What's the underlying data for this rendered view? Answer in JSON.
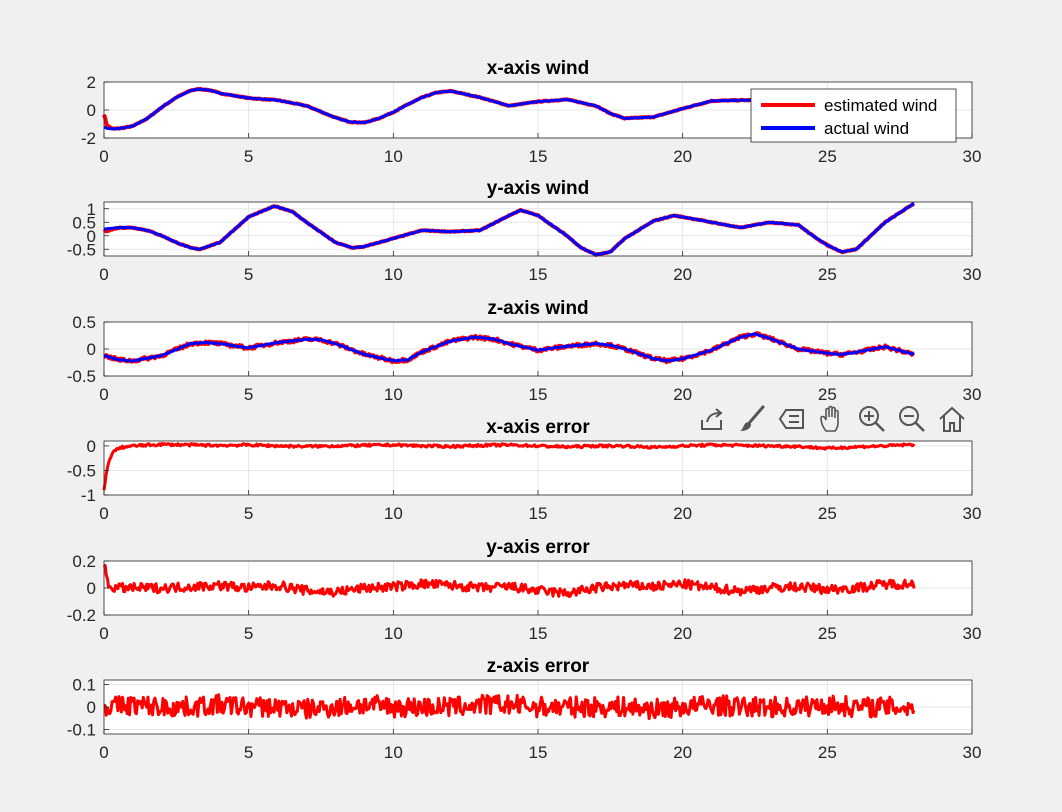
{
  "figure": {
    "background": "#f0f0f0",
    "axes_background": "#ffffff",
    "grid_color": "#e6e6e6",
    "axis_color": "#262626"
  },
  "colors": {
    "estimated": "#ff0000",
    "actual": "#0000ff"
  },
  "toolbar": {
    "buttons": [
      {
        "name": "export-icon"
      },
      {
        "name": "brush-icon"
      },
      {
        "name": "data-tips-icon"
      },
      {
        "name": "pan-icon"
      },
      {
        "name": "zoom-in-icon"
      },
      {
        "name": "zoom-out-icon"
      },
      {
        "name": "home-icon"
      }
    ]
  },
  "chart_data": [
    {
      "type": "line",
      "title": "x-axis wind",
      "xlim": [
        0,
        30
      ],
      "ylim": [
        -2,
        2
      ],
      "xticks": [
        0,
        5,
        10,
        15,
        20,
        25,
        30
      ],
      "yticks": [
        -2,
        0,
        2
      ],
      "grid": true,
      "legend": {
        "position": "top-right",
        "entries": [
          "estimated wind",
          "actual wind"
        ]
      },
      "series": [
        {
          "name": "estimated wind",
          "color": "#ff0000",
          "x": [
            0,
            0.1,
            0.3,
            0.6,
            1,
            1.5,
            2,
            2.5,
            3,
            3.3,
            3.7,
            4,
            5,
            6,
            7,
            8,
            8.5,
            9,
            9.5,
            10,
            10.5,
            11,
            11.5,
            12,
            13,
            14,
            15,
            16,
            17,
            17.5,
            18,
            19,
            20,
            21,
            22,
            23,
            24,
            25,
            26,
            27,
            28
          ],
          "y": [
            -0.3,
            -1.1,
            -1.35,
            -1.3,
            -1.15,
            -0.6,
            0.2,
            0.9,
            1.4,
            1.5,
            1.4,
            1.2,
            0.85,
            0.7,
            0.3,
            -0.55,
            -0.85,
            -0.9,
            -0.6,
            -0.15,
            0.4,
            0.9,
            1.25,
            1.35,
            0.9,
            0.3,
            0.6,
            0.75,
            0.3,
            -0.25,
            -0.6,
            -0.5,
            0.1,
            0.65,
            0.7,
            0.7,
            0.75,
            0.85,
            0.8,
            0.9,
            1.0
          ]
        },
        {
          "name": "actual wind",
          "color": "#0000ff",
          "x": [
            0,
            0.1,
            0.3,
            0.6,
            1,
            1.5,
            2,
            2.5,
            3,
            3.3,
            3.7,
            4,
            5,
            6,
            7,
            8,
            8.5,
            9,
            9.5,
            10,
            10.5,
            11,
            11.5,
            12,
            13,
            14,
            15,
            16,
            17,
            17.5,
            18,
            19,
            20,
            21,
            22,
            23,
            24,
            25,
            26,
            27,
            28
          ],
          "y": [
            -1.2,
            -1.3,
            -1.35,
            -1.3,
            -1.15,
            -0.6,
            0.2,
            0.9,
            1.4,
            1.5,
            1.4,
            1.2,
            0.85,
            0.7,
            0.3,
            -0.55,
            -0.85,
            -0.9,
            -0.6,
            -0.15,
            0.4,
            0.9,
            1.25,
            1.35,
            0.9,
            0.3,
            0.6,
            0.75,
            0.3,
            -0.25,
            -0.6,
            -0.5,
            0.1,
            0.65,
            0.7,
            0.7,
            0.75,
            0.85,
            0.8,
            0.9,
            1.0
          ]
        }
      ]
    },
    {
      "type": "line",
      "title": "y-axis wind",
      "xlim": [
        0,
        30
      ],
      "ylim": [
        -0.75,
        1.25
      ],
      "xticks": [
        0,
        5,
        10,
        15,
        20,
        25,
        30
      ],
      "yticks": [
        -0.5,
        0,
        0.5,
        1
      ],
      "grid": true,
      "series": [
        {
          "name": "estimated wind",
          "color": "#ff0000",
          "x": [
            0,
            0.5,
            1,
            1.5,
            2,
            2.5,
            3,
            3.3,
            4,
            5,
            5.9,
            6.5,
            7,
            8,
            8.6,
            9,
            10,
            11,
            12,
            13,
            14,
            14.4,
            15,
            16,
            16.5,
            17,
            17.5,
            18,
            19,
            19.7,
            20.5,
            21,
            22,
            23,
            24,
            24.5,
            25,
            25.5,
            26,
            26.5,
            27,
            28
          ],
          "y": [
            0.15,
            0.3,
            0.3,
            0.2,
            0.0,
            -0.25,
            -0.45,
            -0.5,
            -0.25,
            0.7,
            1.1,
            0.9,
            0.5,
            -0.25,
            -0.45,
            -0.4,
            -0.1,
            0.2,
            0.15,
            0.2,
            0.75,
            0.95,
            0.75,
            0.0,
            -0.45,
            -0.7,
            -0.6,
            -0.1,
            0.55,
            0.75,
            0.6,
            0.5,
            0.3,
            0.5,
            0.4,
            0.0,
            -0.35,
            -0.6,
            -0.5,
            0.0,
            0.5,
            1.2
          ]
        },
        {
          "name": "actual wind",
          "color": "#0000ff",
          "x": [
            0,
            0.5,
            1,
            1.5,
            2,
            2.5,
            3,
            3.3,
            4,
            5,
            5.9,
            6.5,
            7,
            8,
            8.6,
            9,
            10,
            11,
            12,
            13,
            14,
            14.4,
            15,
            16,
            16.5,
            17,
            17.5,
            18,
            19,
            19.7,
            20.5,
            21,
            22,
            23,
            24,
            24.5,
            25,
            25.5,
            26,
            26.5,
            27,
            28
          ],
          "y": [
            0.25,
            0.3,
            0.3,
            0.2,
            0.0,
            -0.25,
            -0.45,
            -0.5,
            -0.25,
            0.7,
            1.1,
            0.9,
            0.5,
            -0.25,
            -0.45,
            -0.4,
            -0.1,
            0.2,
            0.15,
            0.2,
            0.75,
            0.95,
            0.75,
            0.0,
            -0.45,
            -0.7,
            -0.6,
            -0.1,
            0.55,
            0.75,
            0.6,
            0.5,
            0.3,
            0.5,
            0.4,
            0.0,
            -0.35,
            -0.6,
            -0.5,
            0.0,
            0.5,
            1.2
          ]
        }
      ]
    },
    {
      "type": "line",
      "title": "z-axis wind",
      "xlim": [
        0,
        30
      ],
      "ylim": [
        -0.5,
        0.5
      ],
      "xticks": [
        0,
        5,
        10,
        15,
        20,
        25,
        30
      ],
      "yticks": [
        -0.5,
        0,
        0.5
      ],
      "grid": true,
      "series": [
        {
          "name": "estimated wind",
          "color": "#ff0000",
          "x": [
            0,
            0.5,
            1,
            2,
            3,
            3.5,
            4,
            5,
            6,
            7,
            7.5,
            8,
            9,
            10,
            10.5,
            11,
            12,
            12.8,
            13.5,
            14,
            15,
            16,
            17,
            17.5,
            18,
            19,
            19.5,
            20,
            21,
            22,
            22.5,
            23,
            24,
            25,
            25.5,
            26,
            27,
            28
          ],
          "y": [
            -0.12,
            -0.2,
            -0.22,
            -0.12,
            0.1,
            0.12,
            0.1,
            0.02,
            0.12,
            0.18,
            0.17,
            0.1,
            -0.1,
            -0.22,
            -0.2,
            -0.05,
            0.15,
            0.22,
            0.18,
            0.1,
            -0.02,
            0.05,
            0.1,
            0.07,
            0.0,
            -0.18,
            -0.22,
            -0.18,
            -0.02,
            0.22,
            0.28,
            0.2,
            0.0,
            -0.08,
            -0.1,
            -0.06,
            0.04,
            -0.1
          ]
        },
        {
          "name": "actual wind",
          "color": "#0000ff",
          "x": [
            0,
            0.5,
            1,
            2,
            3,
            3.5,
            4,
            5,
            6,
            7,
            7.5,
            8,
            9,
            10,
            10.5,
            11,
            12,
            12.8,
            13.5,
            14,
            15,
            16,
            17,
            17.5,
            18,
            19,
            19.5,
            20,
            21,
            22,
            22.5,
            23,
            24,
            25,
            25.5,
            26,
            27,
            28
          ],
          "y": [
            -0.12,
            -0.2,
            -0.22,
            -0.12,
            0.1,
            0.12,
            0.1,
            0.02,
            0.12,
            0.18,
            0.17,
            0.1,
            -0.1,
            -0.22,
            -0.2,
            -0.05,
            0.15,
            0.22,
            0.18,
            0.1,
            -0.02,
            0.05,
            0.1,
            0.07,
            0.0,
            -0.18,
            -0.22,
            -0.18,
            -0.02,
            0.22,
            0.28,
            0.2,
            0.0,
            -0.08,
            -0.1,
            -0.06,
            0.04,
            -0.1
          ]
        }
      ]
    },
    {
      "type": "line",
      "title": "x-axis error",
      "xlim": [
        0,
        30
      ],
      "ylim": [
        -1,
        0.1
      ],
      "xticks": [
        0,
        5,
        10,
        15,
        20,
        25,
        30
      ],
      "yticks": [
        -1,
        -0.5,
        0
      ],
      "grid": true,
      "series": [
        {
          "name": "x-axis error",
          "color": "#ff0000",
          "x": [
            0,
            0.05,
            0.1,
            0.2,
            0.35,
            0.6,
            1,
            2,
            3,
            4,
            5,
            6,
            7,
            8,
            9,
            10,
            11,
            12,
            13,
            14,
            15,
            16,
            17,
            18,
            19,
            20,
            21,
            22,
            23,
            24,
            25,
            26,
            27,
            28
          ],
          "y": [
            -0.9,
            -0.7,
            -0.5,
            -0.25,
            -0.1,
            -0.03,
            0.0,
            0.03,
            0.02,
            0.01,
            0.02,
            0.0,
            -0.01,
            0.0,
            0.01,
            0.02,
            0.0,
            -0.01,
            0.01,
            0.02,
            0.0,
            -0.02,
            0.0,
            0.0,
            -0.03,
            0.0,
            0.02,
            0.01,
            0.0,
            -0.01,
            -0.05,
            -0.02,
            0.0,
            0.03
          ]
        }
      ]
    },
    {
      "type": "line",
      "title": "y-axis error",
      "xlim": [
        0,
        30
      ],
      "ylim": [
        -0.2,
        0.2
      ],
      "xticks": [
        0,
        5,
        10,
        15,
        20,
        25,
        30
      ],
      "yticks": [
        -0.2,
        0,
        0.2
      ],
      "grid": true,
      "series": [
        {
          "name": "y-axis error",
          "color": "#ff0000",
          "x": [
            0,
            0.05,
            0.1,
            0.2,
            0.5,
            1,
            2,
            3,
            4,
            5,
            6,
            7,
            8,
            9,
            10,
            11,
            12,
            13,
            14,
            15,
            16,
            17,
            18,
            19,
            20,
            21,
            22,
            23,
            24,
            25,
            26,
            27,
            28
          ],
          "y": [
            0.18,
            0.12,
            0.05,
            0.01,
            0.0,
            0.0,
            0.0,
            0.01,
            0.02,
            0.0,
            0.02,
            -0.02,
            -0.03,
            0.0,
            0.01,
            0.03,
            0.02,
            0.0,
            0.01,
            -0.02,
            -0.04,
            0.0,
            0.02,
            0.01,
            0.03,
            0.0,
            -0.02,
            0.0,
            0.01,
            -0.01,
            0.0,
            0.03,
            0.03
          ]
        }
      ]
    },
    {
      "type": "line",
      "title": "z-axis error",
      "xlim": [
        0,
        30
      ],
      "ylim": [
        -0.12,
        0.12
      ],
      "xticks": [
        0,
        5,
        10,
        15,
        20,
        25,
        30
      ],
      "yticks": [
        -0.1,
        0,
        0.1
      ],
      "grid": true,
      "series": [
        {
          "name": "z-axis error",
          "color": "#ff0000",
          "x": [
            0,
            1,
            2,
            3,
            4,
            5,
            6,
            7,
            8,
            9,
            10,
            11,
            12,
            13,
            14,
            15,
            16,
            17,
            18,
            19,
            20,
            21,
            22,
            23,
            24,
            25,
            26,
            27,
            28
          ],
          "y": [
            0.0,
            0.01,
            0.0,
            0.0,
            0.01,
            0.0,
            0.0,
            -0.01,
            0.0,
            0.01,
            0.0,
            0.0,
            0.0,
            0.01,
            0.01,
            0.0,
            0.0,
            0.0,
            0.0,
            -0.01,
            0.0,
            0.01,
            0.0,
            0.0,
            0.0,
            0.01,
            0.0,
            0.0,
            0.0
          ]
        }
      ]
    }
  ]
}
